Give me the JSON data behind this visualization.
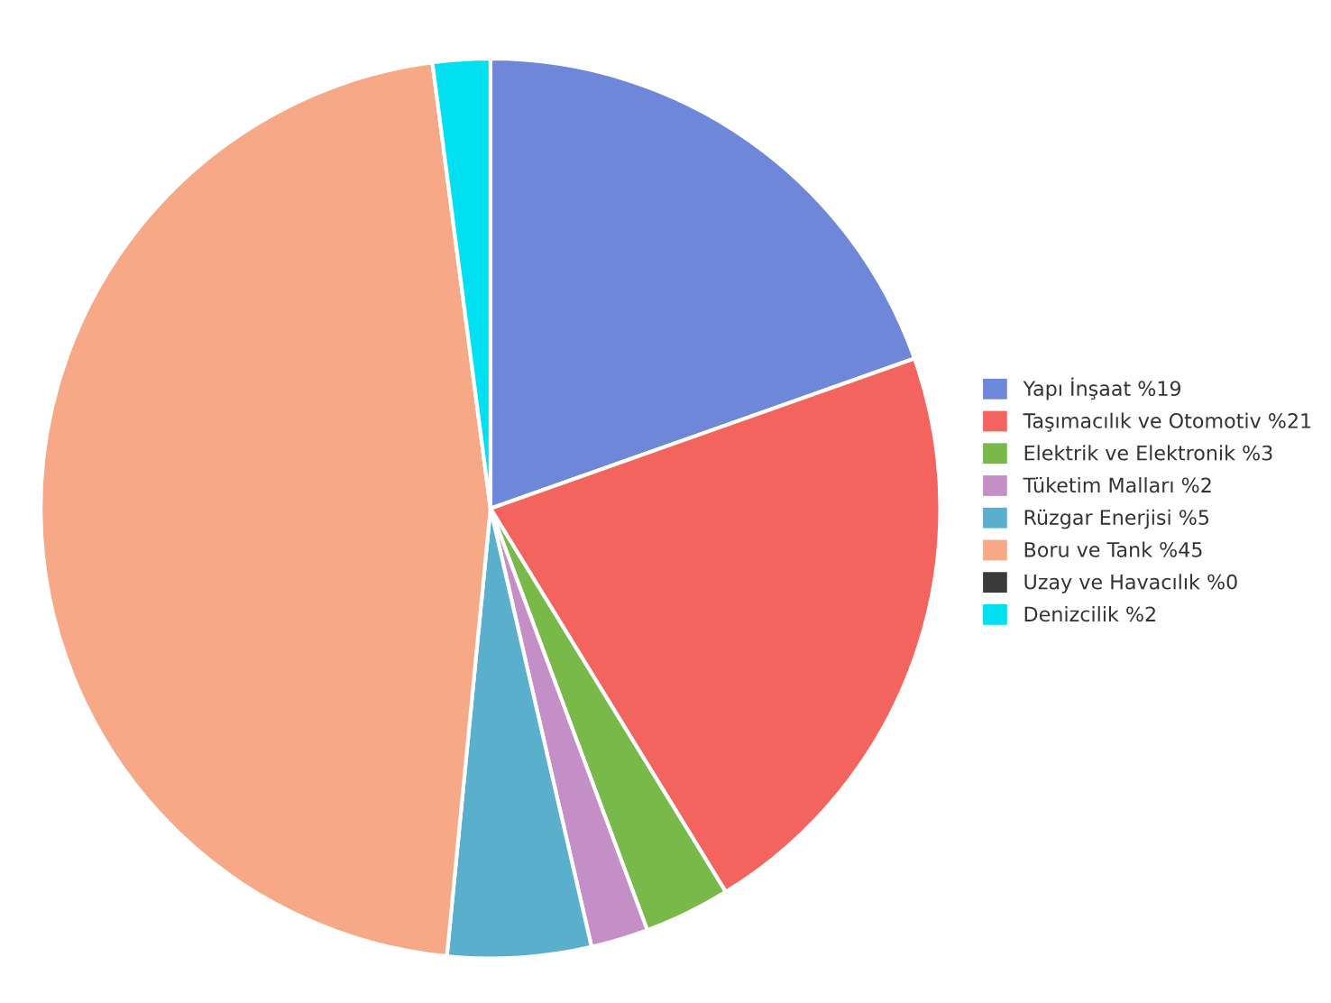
{
  "chart_data": {
    "type": "pie",
    "categories": [
      "Yapı İnşaat %19",
      "Taşımacılık ve Otomotiv %21",
      "Elektrik ve Elektronik %3",
      "Tüketim Malları %2",
      "Rüzgar Enerjisi %5",
      "Boru ve Tank %45",
      "Uzay ve Havacılık %0",
      "Denizcilik %2"
    ],
    "values": [
      19,
      21,
      3,
      2,
      5,
      45,
      0,
      2
    ],
    "colors": [
      "#6e87d9",
      "#f4645f",
      "#78b94a",
      "#c48fc6",
      "#5ab0cc",
      "#f7a886",
      "#3a3a3a",
      "#00e0f0"
    ],
    "legend": "right"
  }
}
